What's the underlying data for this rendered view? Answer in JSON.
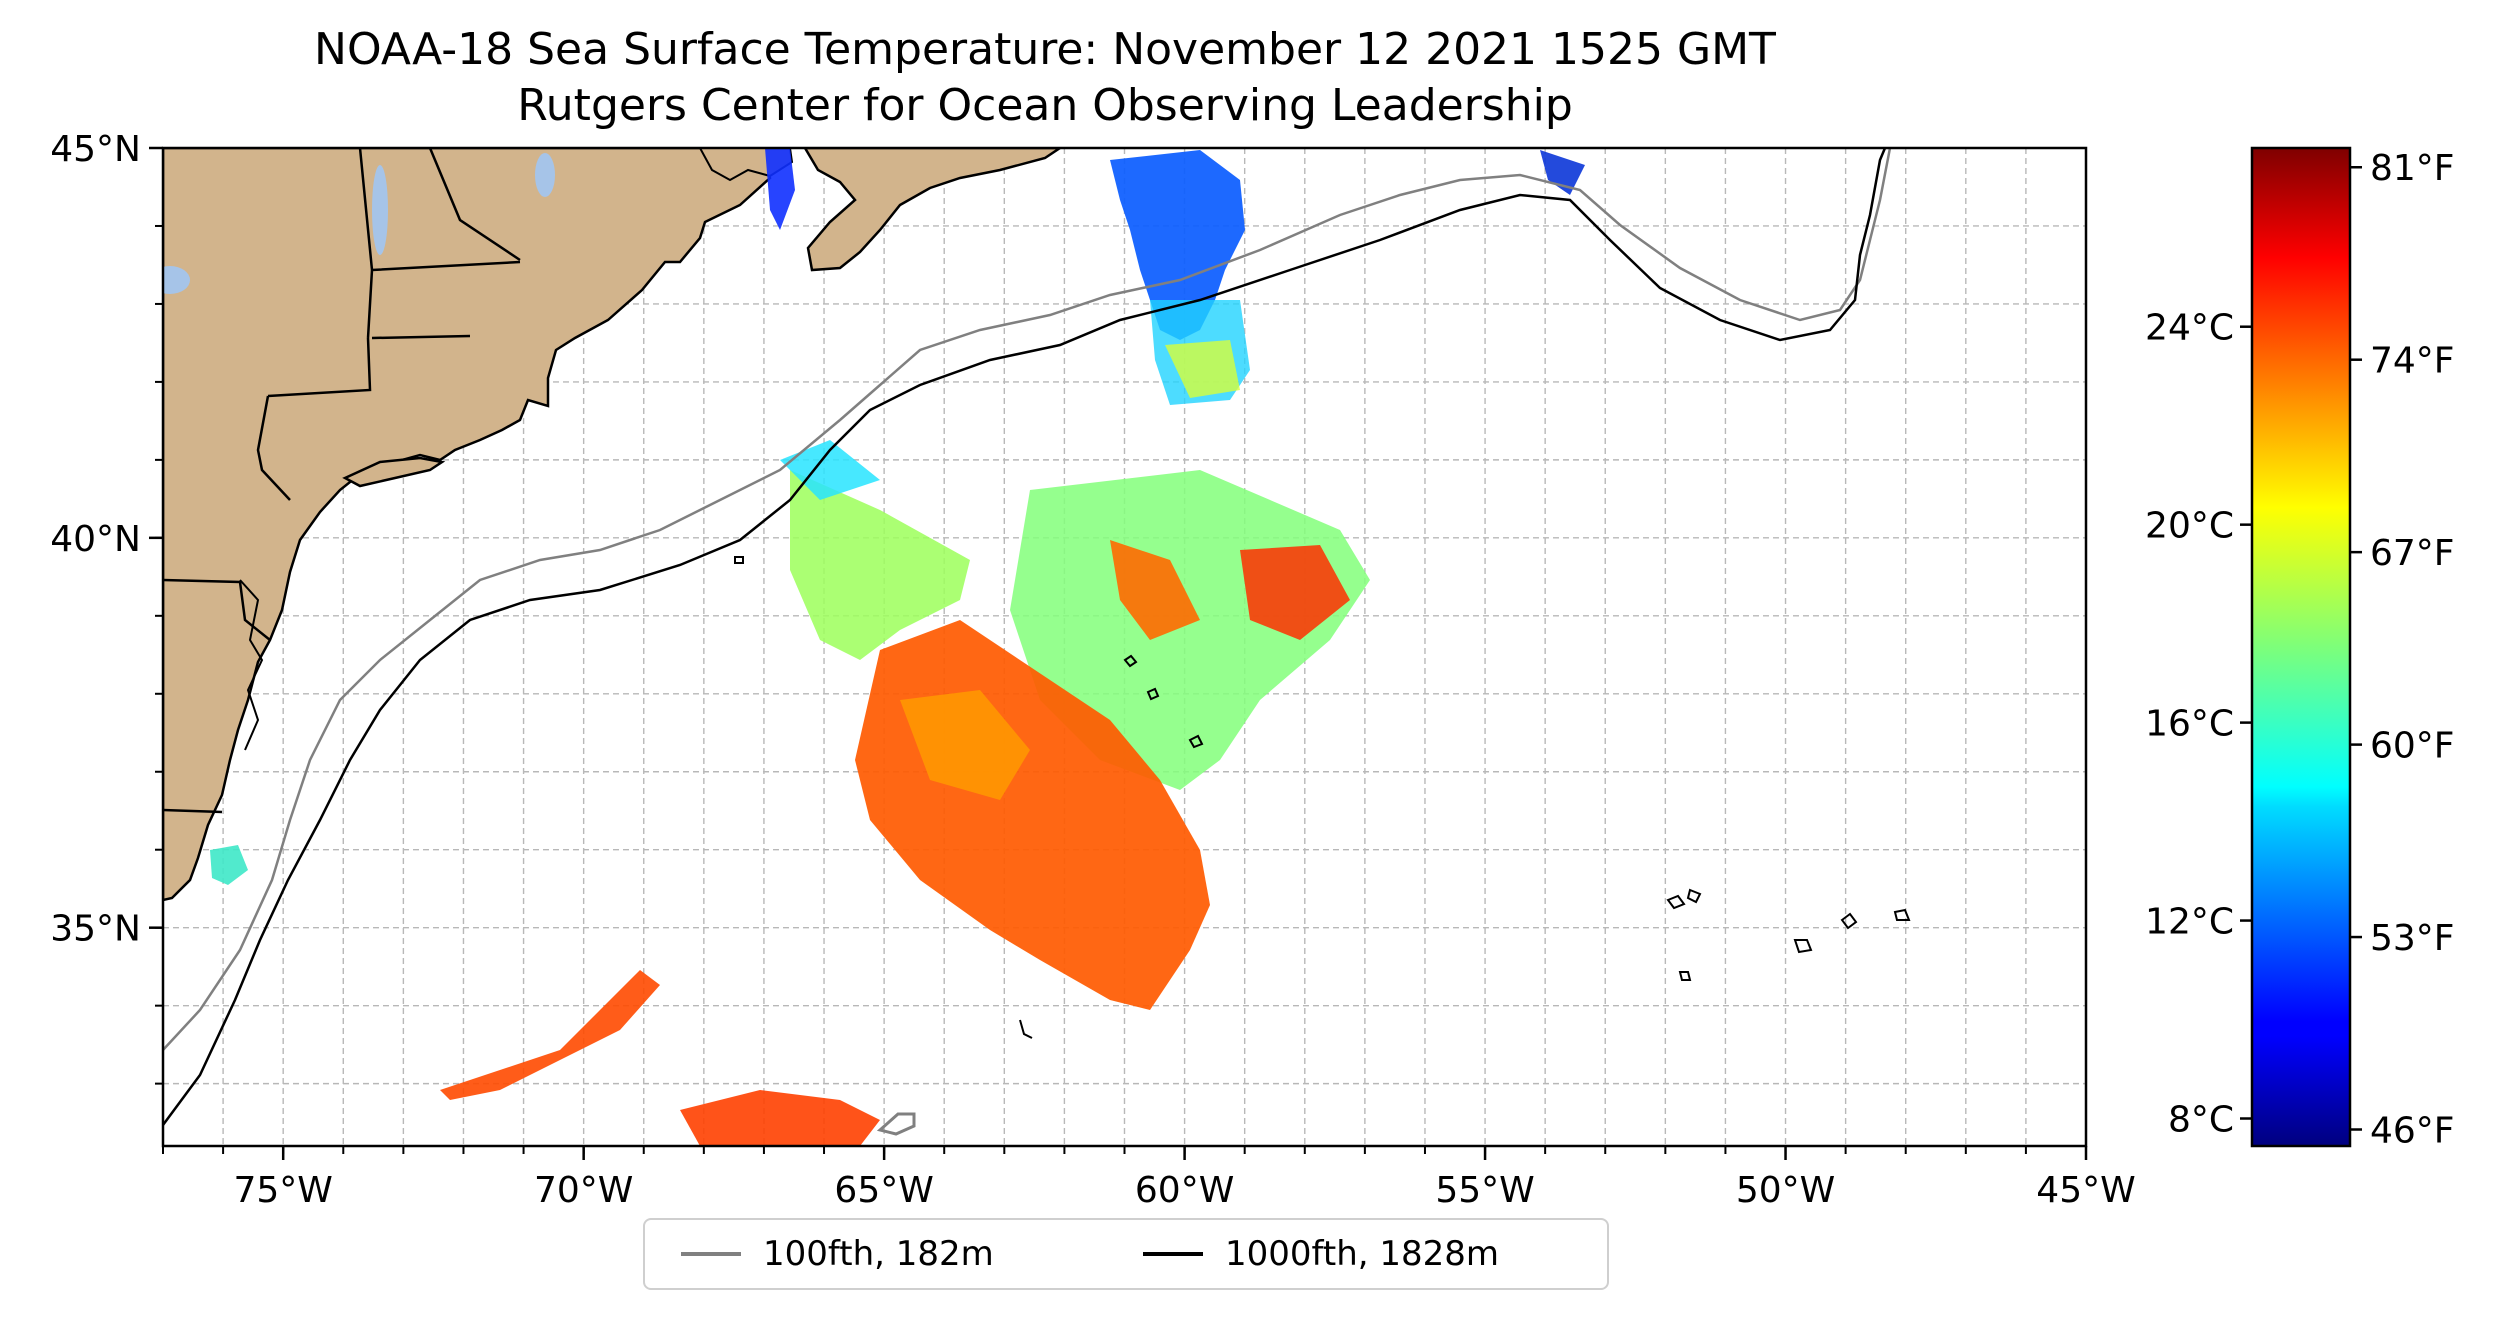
{
  "title": {
    "line1": "NOAA-18 Sea Surface Temperature: November 12 2021 1525 GMT",
    "line2": "Rutgers Center for Ocean Observing Leadership"
  },
  "map": {
    "lon_range": [
      -77,
      -45
    ],
    "lat_range": [
      32.2,
      45
    ],
    "x_ticks": [
      {
        "value": -75,
        "label": "75°W"
      },
      {
        "value": -70,
        "label": "70°W"
      },
      {
        "value": -65,
        "label": "65°W"
      },
      {
        "value": -60,
        "label": "60°W"
      },
      {
        "value": -55,
        "label": "55°W"
      },
      {
        "value": -50,
        "label": "50°W"
      },
      {
        "value": -45,
        "label": "45°W"
      }
    ],
    "y_ticks": [
      {
        "value": 45,
        "label": "45°N"
      },
      {
        "value": 40,
        "label": "40°N"
      },
      {
        "value": 35,
        "label": "35°N"
      }
    ],
    "gridlines": true,
    "land_color": "#d2b48c",
    "lake_color": "#a6c4e8"
  },
  "legend": {
    "placement": "bottom-center",
    "items": [
      {
        "label": "100fth, 182m",
        "color": "#808080"
      },
      {
        "label": "1000fth, 1828m",
        "color": "#000000"
      }
    ]
  },
  "colorbar": {
    "colormap": "jet",
    "celsius_ticks": [
      {
        "value": 8,
        "label": "8°C"
      },
      {
        "value": 12,
        "label": "12°C"
      },
      {
        "value": 16,
        "label": "16°C"
      },
      {
        "value": 20,
        "label": "20°C"
      },
      {
        "value": 24,
        "label": "24°C"
      }
    ],
    "fahrenheit_ticks": [
      {
        "value": 46,
        "label": "46°F"
      },
      {
        "value": 53,
        "label": "53°F"
      },
      {
        "value": 60,
        "label": "60°F"
      },
      {
        "value": 67,
        "label": "67°F"
      },
      {
        "value": 74,
        "label": "74°F"
      },
      {
        "value": 81,
        "label": "81°F"
      }
    ]
  }
}
